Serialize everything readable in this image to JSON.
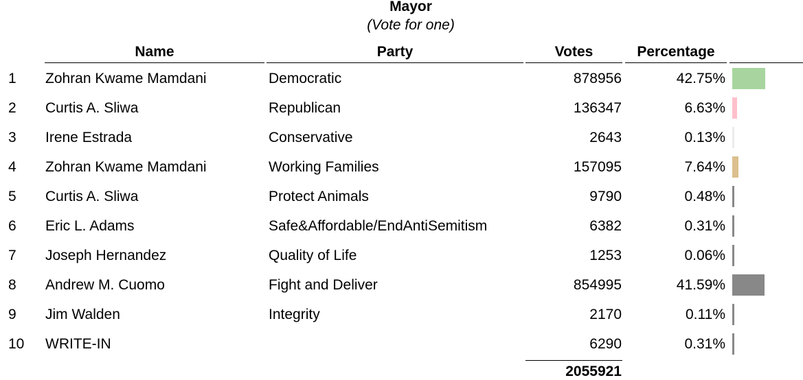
{
  "title": "Mayor",
  "subtitle": "(Vote for one)",
  "table": {
    "columns": [
      "Name",
      "Party",
      "Votes",
      "Percentage"
    ],
    "rows": [
      {
        "rank": 1,
        "name": "Zohran Kwame Mamdani",
        "party": "Democratic",
        "votes": 878956,
        "percentage": 42.75,
        "percentage_label": "42.75%",
        "color": "#a8d59f"
      },
      {
        "rank": 2,
        "name": "Curtis A. Sliwa",
        "party": "Republican",
        "votes": 136347,
        "percentage": 6.63,
        "percentage_label": "6.63%",
        "color": "#ffc0cb"
      },
      {
        "rank": 3,
        "name": "Irene Estrada",
        "party": "Conservative",
        "votes": 2643,
        "percentage": 0.13,
        "percentage_label": "0.13%",
        "color": "#ececec"
      },
      {
        "rank": 4,
        "name": "Zohran Kwame Mamdani",
        "party": "Working Families",
        "votes": 157095,
        "percentage": 7.64,
        "percentage_label": "7.64%",
        "color": "#dcc08f"
      },
      {
        "rank": 5,
        "name": "Curtis A. Sliwa",
        "party": "Protect Animals",
        "votes": 9790,
        "percentage": 0.48,
        "percentage_label": "0.48%",
        "color": "#888888"
      },
      {
        "rank": 6,
        "name": "Eric L. Adams",
        "party": "Safe&Affordable/EndAntiSemitism",
        "votes": 6382,
        "percentage": 0.31,
        "percentage_label": "0.31%",
        "color": "#888888"
      },
      {
        "rank": 7,
        "name": "Joseph Hernandez",
        "party": "Quality of Life",
        "votes": 1253,
        "percentage": 0.06,
        "percentage_label": "0.06%",
        "color": "#888888"
      },
      {
        "rank": 8,
        "name": "Andrew M. Cuomo",
        "party": "Fight and Deliver",
        "votes": 854995,
        "percentage": 41.59,
        "percentage_label": "41.59%",
        "color": "#888888"
      },
      {
        "rank": 9,
        "name": "Jim Walden",
        "party": "Integrity",
        "votes": 2170,
        "percentage": 0.11,
        "percentage_label": "0.11%",
        "color": "#888888"
      },
      {
        "rank": 10,
        "name": "WRITE-IN",
        "party": null,
        "votes": 6290,
        "percentage": 0.31,
        "percentage_label": "0.31%",
        "color": "#888888"
      }
    ],
    "total_votes": 2055921
  }
}
